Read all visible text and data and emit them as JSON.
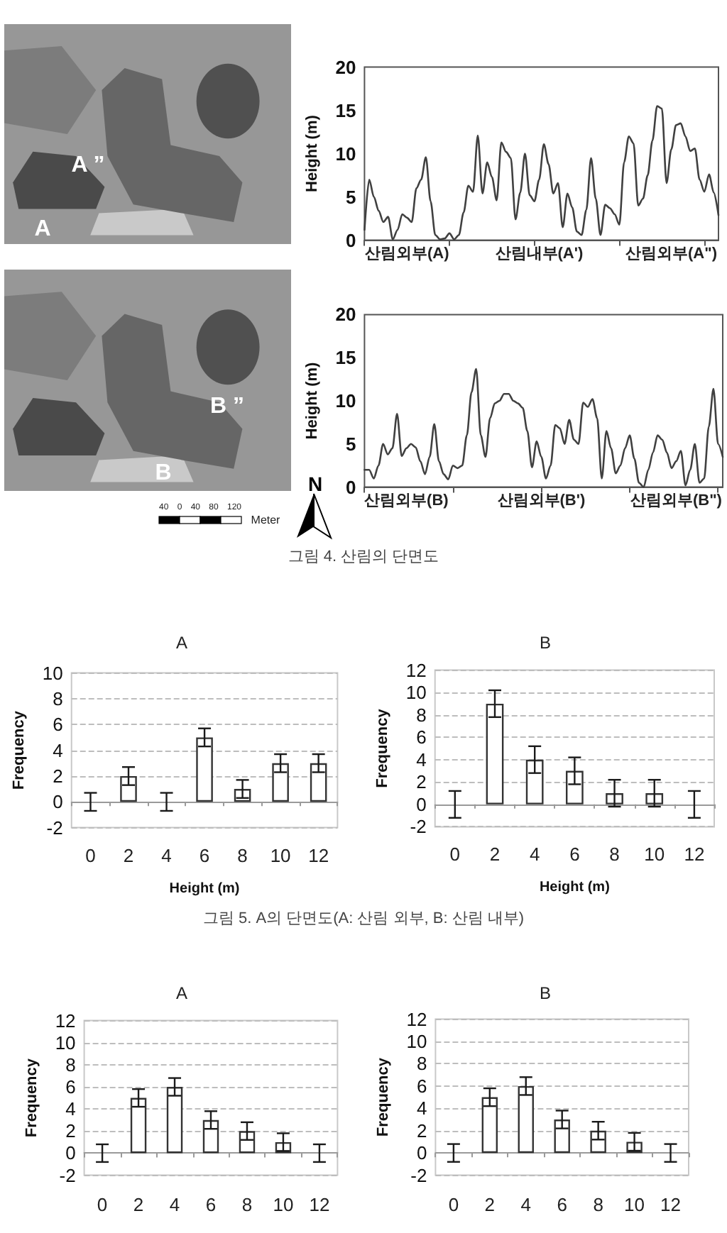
{
  "chart_data": [
    {
      "type": "other",
      "annotations": [
        "A ”",
        "A"
      ]
    },
    {
      "type": "line",
      "ylabel": "Height (m)",
      "categories": [
        null,
        null,
        null,
        null,
        null,
        null,
        null,
        null,
        null,
        "산림외부(A)",
        null,
        null,
        null,
        null,
        null,
        null,
        null,
        null,
        null,
        null,
        null,
        null,
        null,
        null,
        null,
        null,
        null,
        null,
        null,
        null,
        null,
        null,
        null,
        null,
        null,
        null,
        null,
        "산림내부(A')",
        null,
        null,
        null,
        null,
        null,
        null,
        null,
        null,
        null,
        null,
        null,
        null,
        null,
        null,
        null,
        null,
        null,
        null,
        null,
        null,
        null,
        null,
        null,
        null,
        null,
        null,
        null,
        "산림외부(A\")",
        null,
        null,
        null,
        null,
        null,
        null,
        null,
        null,
        null,
        null
      ],
      "values": [
        1.2,
        7.0,
        5.0,
        3.4,
        2.1,
        2.7,
        0.1,
        1.2,
        3.0,
        2.6,
        2.1,
        6.0,
        7.0,
        9.6,
        4.5,
        0.6,
        0.1,
        0.2,
        0.8,
        0.1,
        0.6,
        3.2,
        6.3,
        5.6,
        12.1,
        5.4,
        9.0,
        7.3,
        4.6,
        11.3,
        10.2,
        9.5,
        2.4,
        5.5,
        10.0,
        5.2,
        4.5,
        7.0,
        11.1,
        8.8,
        5.4,
        6.6,
        1.5,
        5.4,
        3.8,
        1.0,
        0.6,
        3.5,
        9.5,
        4.8,
        0.6,
        4.1,
        3.7,
        3.0,
        1.8,
        9.0,
        12.0,
        11.2,
        4.0,
        4.8,
        7.5,
        11.5,
        15.5,
        15.2,
        6.6,
        10.5,
        13.3,
        13.5,
        12.0,
        10.3,
        10.6,
        7.0,
        5.6,
        7.6,
        5.5,
        2.9
      ],
      "color": "#404040",
      "marker": "none",
      "ylim": [
        0,
        20
      ],
      "yticks": [
        0,
        5,
        10,
        15,
        20
      ]
    },
    {
      "type": "other",
      "annotations": [
        "B ”",
        "B",
        "40 0 40 80 120",
        "Meter",
        "N"
      ]
    },
    {
      "type": "line",
      "ylabel": "Height (m)",
      "categories": [
        null,
        null,
        null,
        null,
        null,
        null,
        null,
        null,
        null,
        "산림외부(B)",
        null,
        null,
        null,
        null,
        null,
        null,
        null,
        null,
        null,
        null,
        null,
        null,
        null,
        null,
        null,
        null,
        null,
        null,
        null,
        null,
        null,
        null,
        null,
        null,
        null,
        null,
        null,
        null,
        "산림외부(B')",
        null,
        null,
        null,
        null,
        null,
        null,
        null,
        null,
        null,
        null,
        null,
        null,
        null,
        null,
        null,
        null,
        null,
        null,
        null,
        null,
        null,
        null,
        null,
        null,
        null,
        null,
        null,
        null,
        "산림외부(B\")",
        null,
        null,
        null,
        null,
        null,
        null,
        null,
        null,
        null,
        null
      ],
      "values": [
        2.0,
        2.0,
        1.0,
        2.5,
        5.0,
        3.8,
        4.5,
        8.5,
        3.6,
        4.5,
        5.0,
        4.6,
        3.0,
        1.5,
        3.5,
        7.3,
        3.0,
        1.5,
        0.9,
        2.5,
        2.2,
        2.5,
        6.0,
        11.0,
        13.7,
        6.0,
        3.5,
        8.0,
        9.7,
        10.0,
        10.8,
        10.8,
        10.0,
        9.7,
        9.2,
        6.5,
        2.3,
        5.3,
        3.5,
        1.0,
        2.5,
        7.2,
        6.8,
        5.0,
        7.8,
        5.5,
        5.0,
        9.8,
        9.3,
        10.2,
        8.0,
        1.0,
        6.5,
        4.5,
        1.6,
        2.5,
        4.5,
        6.0,
        3.3,
        0.5,
        0.0,
        2.0,
        4.0,
        6.0,
        5.5,
        4.0,
        2.2,
        3.0,
        4.2,
        0.2,
        2.0,
        5.0,
        0.5,
        1.0,
        7.0,
        11.4,
        5.0,
        3.5
      ],
      "color": "#404040",
      "marker": "none",
      "ylim": [
        0,
        20
      ],
      "yticks": [
        0,
        5,
        10,
        15,
        20
      ],
      "annotations": [
        "그림 4. 산림의 단면도"
      ]
    },
    {
      "type": "bar",
      "title": "A",
      "xlabel": "Height (m)",
      "ylabel": "Frequency",
      "categories": [
        "0",
        "2",
        "4",
        "6",
        "8",
        "10",
        "12"
      ],
      "values": [
        0,
        2,
        0,
        5,
        1,
        3,
        3
      ],
      "errors": [
        0.7,
        0.7,
        0.7,
        0.7,
        0.7,
        0.7,
        0.7
      ],
      "color": "#ffffff",
      "ylim": [
        -2,
        10
      ],
      "yticks": [
        -2,
        0,
        2,
        4,
        6,
        8,
        10
      ],
      "grid": "y"
    },
    {
      "type": "bar",
      "title": "B",
      "xlabel": "Height (m)",
      "ylabel": "Frequency",
      "categories": [
        "0",
        "2",
        "4",
        "6",
        "8",
        "10",
        "12"
      ],
      "values": [
        0,
        9,
        4,
        3,
        1,
        1,
        0
      ],
      "errors": [
        1.2,
        1.2,
        1.2,
        1.2,
        1.2,
        1.2,
        1.2
      ],
      "color": "#ffffff",
      "ylim": [
        -2,
        12
      ],
      "yticks": [
        -2,
        0,
        2,
        4,
        6,
        8,
        10,
        12
      ],
      "grid": "y",
      "annotations": [
        "그림 5. A의 단면도(A: 산림 외부, B: 산림 내부)"
      ]
    },
    {
      "type": "bar",
      "title": "A",
      "ylabel": "Frequency",
      "categories": [
        "0",
        "2",
        "4",
        "6",
        "8",
        "10",
        "12"
      ],
      "values": [
        0,
        5,
        6,
        3,
        2,
        1,
        0
      ],
      "errors": [
        0.8,
        0.8,
        0.8,
        0.8,
        0.8,
        0.8,
        0.8
      ],
      "color": "#ffffff",
      "ylim": [
        -2,
        12
      ],
      "yticks": [
        -2,
        0,
        2,
        4,
        6,
        8,
        10,
        12
      ],
      "grid": "y"
    },
    {
      "type": "bar",
      "title": "B",
      "ylabel": "Frequency",
      "categories": [
        "0",
        "2",
        "4",
        "6",
        "8",
        "10",
        "12"
      ],
      "values": [
        0,
        5,
        6,
        3,
        2,
        1,
        0
      ],
      "errors": [
        0.8,
        0.8,
        0.8,
        0.8,
        0.8,
        0.8,
        0.8
      ],
      "color": "#ffffff",
      "ylim": [
        -2,
        12
      ],
      "yticks": [
        -2,
        0,
        2,
        4,
        6,
        8,
        10,
        12
      ],
      "grid": "y"
    }
  ]
}
